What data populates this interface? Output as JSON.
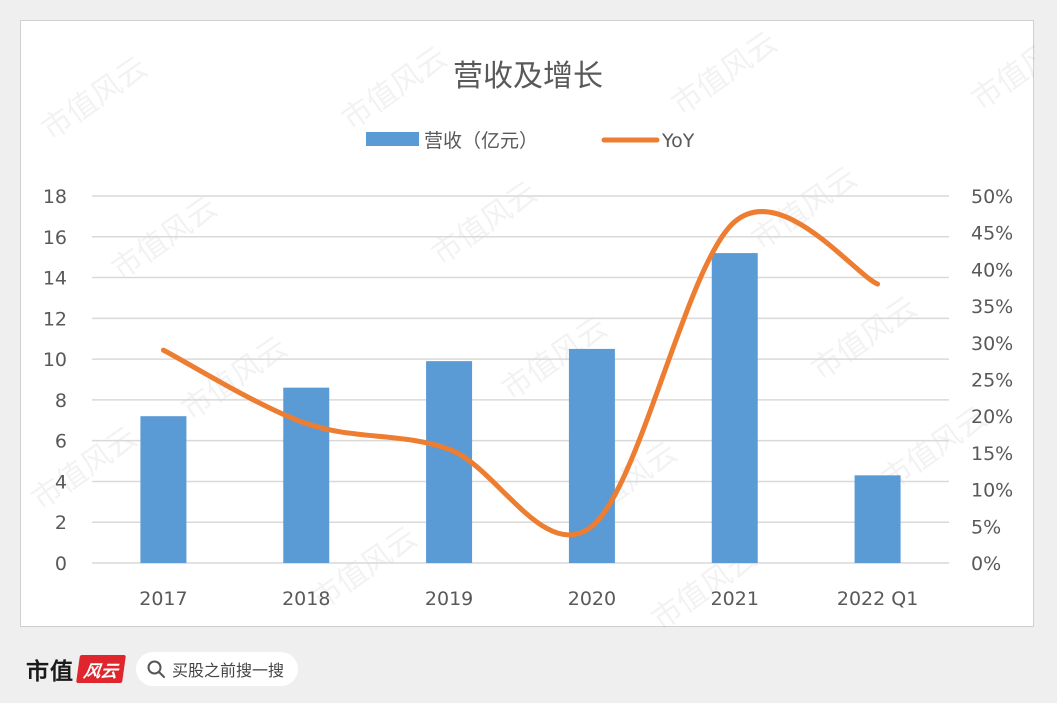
{
  "chart_data": {
    "type": "bar+line",
    "title": "营收及增长",
    "categories": [
      "2017",
      "2018",
      "2019",
      "2020",
      "2021",
      "2022 Q1"
    ],
    "series": [
      {
        "name": "营收（亿元）",
        "type": "bar",
        "axis": "left",
        "color": "#5b9bd5",
        "values": [
          7.2,
          8.6,
          9.9,
          10.5,
          15.2,
          4.3
        ]
      },
      {
        "name": "YoY",
        "type": "line",
        "axis": "right",
        "color": "#ed7d31",
        "smooth": true,
        "values": [
          0.29,
          0.19,
          0.155,
          0.05,
          0.465,
          0.38
        ]
      }
    ],
    "y_left": {
      "min": 0,
      "max": 18,
      "ticks": [
        "0",
        "2",
        "4",
        "6",
        "8",
        "10",
        "12",
        "14",
        "16",
        "18"
      ]
    },
    "y_right": {
      "min": 0,
      "max": 0.5,
      "ticks": [
        "0%",
        "5%",
        "10%",
        "15%",
        "20%",
        "25%",
        "30%",
        "35%",
        "40%",
        "45%",
        "50%"
      ]
    },
    "grid": true,
    "legend_position": "top"
  },
  "watermark": "市值风云",
  "footer": {
    "brand": "市值",
    "brand_logo": "风云",
    "search_placeholder": "买股之前搜一搜"
  },
  "colors": {
    "bar": "#5b9bd5",
    "line": "#ed7d31",
    "grid": "#d9d9d9",
    "text": "#595959",
    "brand_red": "#e0262d"
  }
}
